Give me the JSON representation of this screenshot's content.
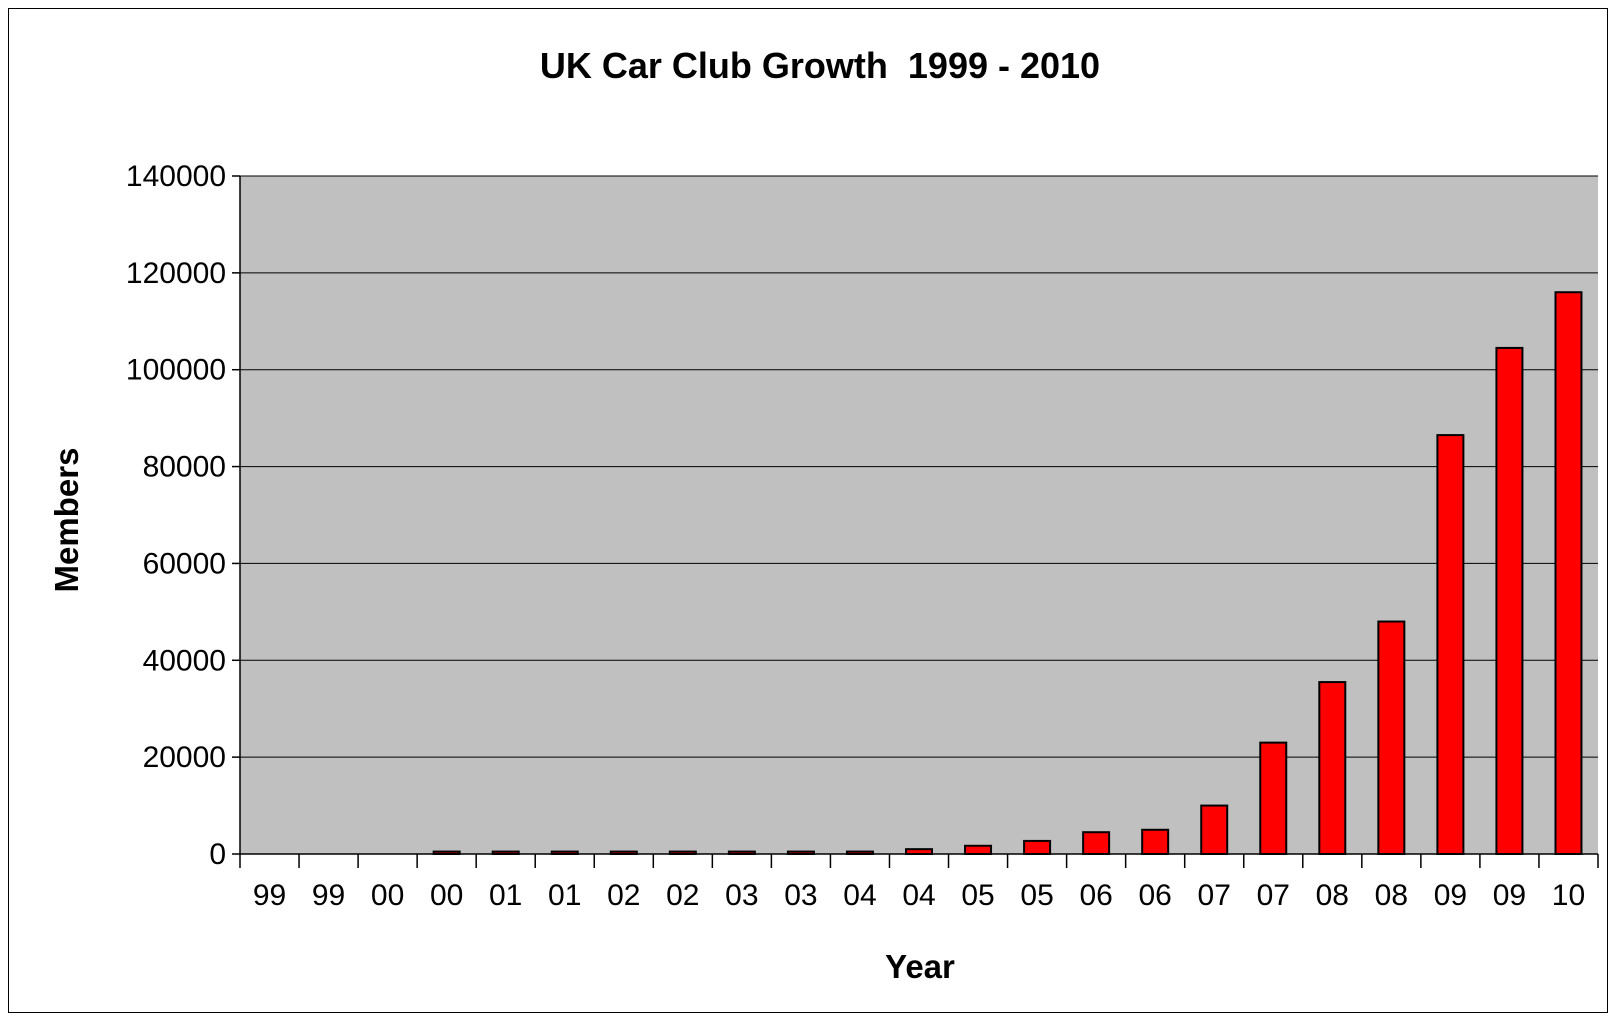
{
  "chart_data": {
    "type": "bar",
    "title": "UK Car Club Growth  1999 - 2010",
    "xlabel": "Year",
    "ylabel": "Members",
    "ylim": [
      0,
      140000
    ],
    "yticks": [
      0,
      20000,
      40000,
      60000,
      80000,
      100000,
      120000,
      140000
    ],
    "grid": "horizontal",
    "legend": "none",
    "categories": [
      "99",
      "99",
      "00",
      "00",
      "01",
      "01",
      "02",
      "02",
      "03",
      "03",
      "04",
      "04",
      "05",
      "05",
      "06",
      "06",
      "07",
      "07",
      "08",
      "08",
      "09",
      "09",
      "10"
    ],
    "values": [
      0,
      0,
      0,
      500,
      500,
      500,
      500,
      500,
      500,
      500,
      500,
      1000,
      1700,
      2700,
      4500,
      5000,
      10000,
      23000,
      35500,
      48000,
      86500,
      104500,
      116000
    ],
    "colors": {
      "bar_fill": "#ff0000",
      "bar_stroke": "#000000",
      "plot_background": "#c0c0c0",
      "gridline": "#000000"
    }
  }
}
